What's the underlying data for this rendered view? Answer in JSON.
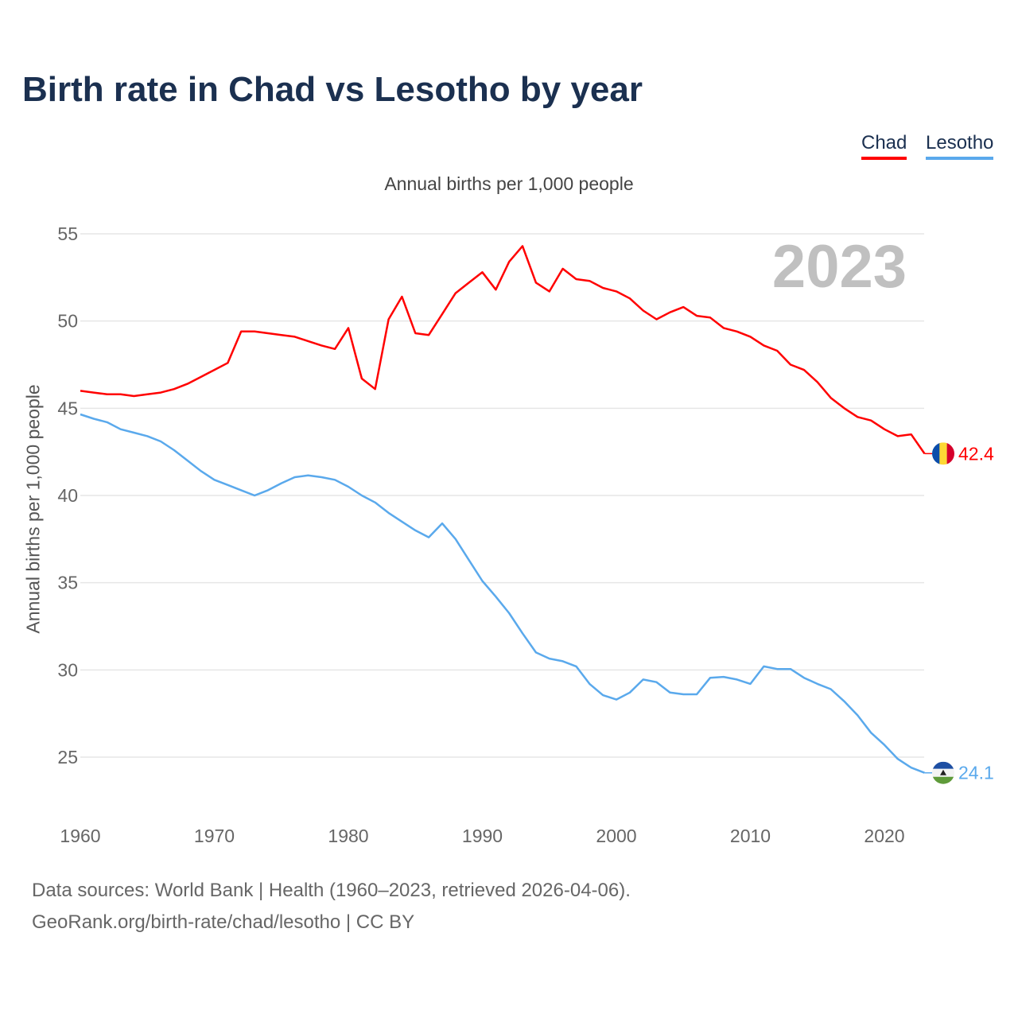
{
  "chart_data": {
    "type": "line",
    "title": "Birth rate in Chad vs Lesotho by year",
    "subtitle": "Annual births per 1,000 people",
    "ylabel": "Annual births per 1,000 people",
    "xlabel": "",
    "year_watermark": "2023",
    "xlim": [
      1960,
      2023
    ],
    "ylim": [
      22,
      55
    ],
    "yticks": [
      25,
      30,
      35,
      40,
      45,
      50,
      55
    ],
    "xticks": [
      1960,
      1970,
      1980,
      1990,
      2000,
      2010,
      2020
    ],
    "grid": true,
    "legend_position": "top-right",
    "x_start": 1960,
    "series": [
      {
        "name": "Chad",
        "color": "#ff0000",
        "end_label": "42.4",
        "values": [
          46.0,
          45.9,
          45.8,
          45.8,
          45.7,
          45.8,
          45.9,
          46.1,
          46.4,
          46.8,
          47.2,
          47.6,
          49.4,
          49.4,
          49.3,
          49.2,
          49.1,
          48.85,
          48.6,
          48.4,
          49.6,
          46.7,
          46.1,
          50.1,
          51.4,
          49.3,
          49.2,
          50.4,
          51.6,
          52.2,
          52.8,
          51.8,
          53.4,
          54.3,
          52.2,
          51.7,
          53.0,
          52.4,
          52.3,
          51.9,
          51.7,
          51.3,
          50.6,
          50.1,
          50.5,
          50.8,
          50.3,
          50.2,
          49.6,
          49.4,
          49.1,
          48.6,
          48.3,
          47.5,
          47.2,
          46.5,
          45.6,
          45.0,
          44.5,
          44.3,
          43.8,
          43.4,
          43.5,
          42.4
        ]
      },
      {
        "name": "Lesotho",
        "color": "#5aa9ec",
        "end_label": "24.1",
        "values": [
          44.65,
          44.4,
          44.2,
          43.8,
          43.6,
          43.4,
          43.1,
          42.6,
          42.0,
          41.4,
          40.9,
          40.6,
          40.3,
          40.0,
          40.3,
          40.7,
          41.05,
          41.15,
          41.05,
          40.9,
          40.5,
          40.0,
          39.6,
          39.0,
          38.5,
          38.0,
          37.6,
          38.4,
          37.5,
          36.3,
          35.1,
          34.2,
          33.25,
          32.1,
          31.0,
          30.65,
          30.5,
          30.2,
          29.2,
          28.55,
          28.3,
          28.7,
          29.45,
          29.3,
          28.7,
          28.6,
          28.6,
          29.55,
          29.6,
          29.45,
          29.2,
          30.2,
          30.05,
          30.05,
          29.55,
          29.2,
          28.9,
          28.2,
          27.4,
          26.4,
          25.7,
          24.9,
          24.4,
          24.1
        ]
      }
    ]
  },
  "footer": {
    "line1": "Data sources: World Bank | Health (1960–2023, retrieved 2026-04-06).",
    "line2": "GeoRank.org/birth-rate/chad/lesotho | CC BY"
  }
}
